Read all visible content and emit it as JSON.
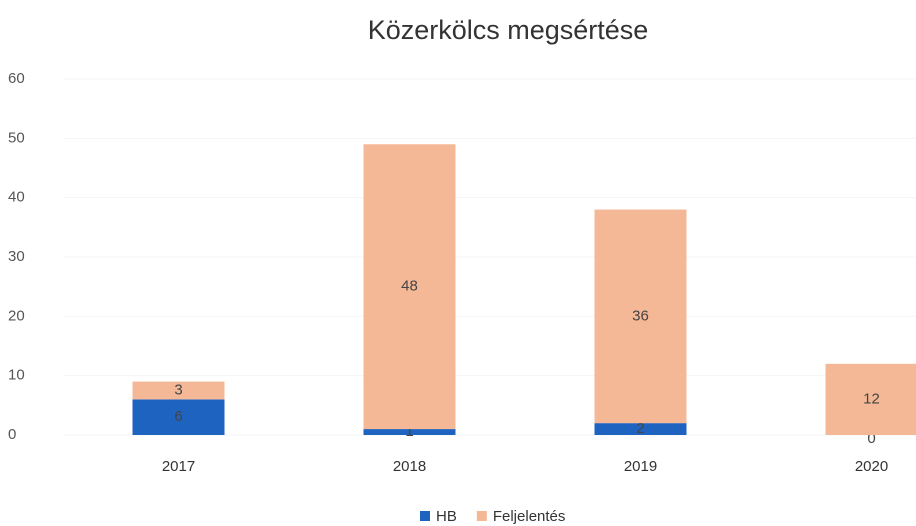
{
  "chart_data": {
    "type": "stacked_bar",
    "title": "Közerkölcs megsértése",
    "categories": [
      "2017",
      "2018",
      "2019",
      "2020"
    ],
    "series": [
      {
        "name": "HB",
        "color": "#1f63c0",
        "values": [
          6,
          1,
          2,
          0
        ]
      },
      {
        "name": "Feljelentés",
        "color": "#f5b896",
        "values": [
          3,
          48,
          36,
          12
        ]
      }
    ],
    "ylim": [
      0,
      60
    ],
    "yticks": [
      0,
      10,
      20,
      30,
      40,
      50,
      60
    ],
    "grid": true,
    "legend": "bottom"
  }
}
